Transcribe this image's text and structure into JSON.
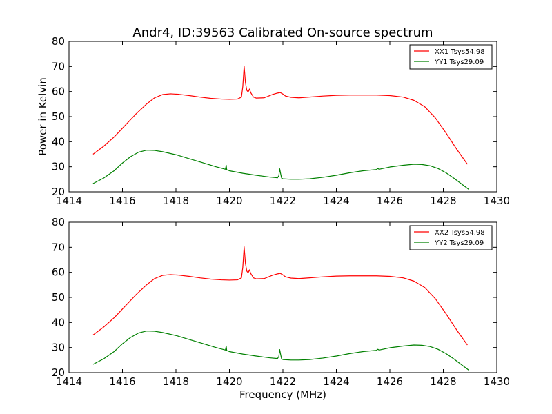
{
  "title": "Andr4, ID:39563 Calibrated On-source spectrum",
  "colors": {
    "xx": "#ff0000",
    "yy": "#008000"
  },
  "chart_data": [
    {
      "type": "line",
      "ylabel": "Power in Kelvin",
      "xlabel": "",
      "xlim": [
        1414,
        1430
      ],
      "ylim": [
        20,
        80
      ],
      "xticks": [
        1414,
        1416,
        1418,
        1420,
        1422,
        1424,
        1426,
        1428,
        1430
      ],
      "yticks": [
        20,
        30,
        40,
        50,
        60,
        70,
        80
      ],
      "legend": "top-right",
      "series": [
        {
          "name": "XX1 Tsys54.98",
          "color": "#ff0000",
          "points": [
            [
              1414.9,
              35.0
            ],
            [
              1415.3,
              38.2
            ],
            [
              1415.7,
              42.0
            ],
            [
              1416.1,
              46.5
            ],
            [
              1416.5,
              51.0
            ],
            [
              1416.9,
              55.0
            ],
            [
              1417.2,
              57.5
            ],
            [
              1417.5,
              58.8
            ],
            [
              1417.8,
              59.1
            ],
            [
              1418.1,
              58.9
            ],
            [
              1418.5,
              58.4
            ],
            [
              1418.9,
              57.8
            ],
            [
              1419.3,
              57.3
            ],
            [
              1419.7,
              57.0
            ],
            [
              1420.0,
              56.9
            ],
            [
              1420.3,
              57.0
            ],
            [
              1420.45,
              57.8
            ],
            [
              1420.5,
              62.0
            ],
            [
              1420.55,
              70.2
            ],
            [
              1420.6,
              63.5
            ],
            [
              1420.65,
              60.5
            ],
            [
              1420.7,
              59.8
            ],
            [
              1420.75,
              61.0
            ],
            [
              1420.8,
              59.5
            ],
            [
              1420.9,
              57.8
            ],
            [
              1421.0,
              57.4
            ],
            [
              1421.3,
              57.5
            ],
            [
              1421.6,
              58.8
            ],
            [
              1421.8,
              59.4
            ],
            [
              1421.9,
              59.6
            ],
            [
              1422.0,
              59.0
            ],
            [
              1422.1,
              58.2
            ],
            [
              1422.3,
              57.7
            ],
            [
              1422.6,
              57.5
            ],
            [
              1423.0,
              57.8
            ],
            [
              1423.5,
              58.2
            ],
            [
              1424.0,
              58.5
            ],
            [
              1424.5,
              58.6
            ],
            [
              1425.0,
              58.6
            ],
            [
              1425.5,
              58.6
            ],
            [
              1426.0,
              58.4
            ],
            [
              1426.5,
              57.8
            ],
            [
              1426.9,
              56.5
            ],
            [
              1427.3,
              54.0
            ],
            [
              1427.7,
              49.5
            ],
            [
              1428.1,
              43.5
            ],
            [
              1428.5,
              37.0
            ],
            [
              1428.9,
              31.0
            ]
          ]
        },
        {
          "name": "YY1 Tsys29.09",
          "color": "#008000",
          "points": [
            [
              1414.9,
              23.3
            ],
            [
              1415.3,
              25.5
            ],
            [
              1415.7,
              28.5
            ],
            [
              1416.0,
              31.5
            ],
            [
              1416.3,
              34.0
            ],
            [
              1416.6,
              35.8
            ],
            [
              1416.9,
              36.6
            ],
            [
              1417.2,
              36.5
            ],
            [
              1417.5,
              36.0
            ],
            [
              1418.0,
              34.8
            ],
            [
              1418.5,
              33.2
            ],
            [
              1419.0,
              31.6
            ],
            [
              1419.5,
              30.0
            ],
            [
              1419.85,
              29.0
            ],
            [
              1419.88,
              30.6
            ],
            [
              1419.9,
              28.8
            ],
            [
              1420.0,
              28.4
            ],
            [
              1420.5,
              27.4
            ],
            [
              1421.0,
              26.6
            ],
            [
              1421.5,
              25.9
            ],
            [
              1421.8,
              25.6
            ],
            [
              1421.85,
              26.5
            ],
            [
              1421.88,
              29.2
            ],
            [
              1421.92,
              27.0
            ],
            [
              1421.95,
              25.5
            ],
            [
              1422.0,
              25.2
            ],
            [
              1422.3,
              25.0
            ],
            [
              1422.6,
              25.0
            ],
            [
              1423.0,
              25.2
            ],
            [
              1423.5,
              25.8
            ],
            [
              1424.0,
              26.6
            ],
            [
              1424.5,
              27.6
            ],
            [
              1425.0,
              28.4
            ],
            [
              1425.5,
              28.9
            ],
            [
              1425.55,
              29.3
            ],
            [
              1425.6,
              29.0
            ],
            [
              1426.0,
              29.9
            ],
            [
              1426.5,
              30.6
            ],
            [
              1426.9,
              31.0
            ],
            [
              1427.2,
              30.9
            ],
            [
              1427.5,
              30.4
            ],
            [
              1427.8,
              29.3
            ],
            [
              1428.1,
              27.6
            ],
            [
              1428.4,
              25.4
            ],
            [
              1428.7,
              23.0
            ],
            [
              1428.95,
              21.0
            ]
          ]
        }
      ]
    },
    {
      "type": "line",
      "ylabel": "",
      "xlabel": "Frequency (MHz)",
      "xlim": [
        1414,
        1430
      ],
      "ylim": [
        20,
        80
      ],
      "xticks": [
        1414,
        1416,
        1418,
        1420,
        1422,
        1424,
        1426,
        1428,
        1430
      ],
      "yticks": [
        20,
        30,
        40,
        50,
        60,
        70,
        80
      ],
      "legend": "top-right",
      "series": [
        {
          "name": "XX2 Tsys54.98",
          "color": "#ff0000",
          "points": [
            [
              1414.9,
              35.0
            ],
            [
              1415.3,
              38.2
            ],
            [
              1415.7,
              42.0
            ],
            [
              1416.1,
              46.5
            ],
            [
              1416.5,
              51.0
            ],
            [
              1416.9,
              55.0
            ],
            [
              1417.2,
              57.5
            ],
            [
              1417.5,
              58.8
            ],
            [
              1417.8,
              59.1
            ],
            [
              1418.1,
              58.9
            ],
            [
              1418.5,
              58.4
            ],
            [
              1418.9,
              57.8
            ],
            [
              1419.3,
              57.3
            ],
            [
              1419.7,
              57.0
            ],
            [
              1420.0,
              56.9
            ],
            [
              1420.3,
              57.0
            ],
            [
              1420.45,
              57.8
            ],
            [
              1420.5,
              62.0
            ],
            [
              1420.55,
              70.2
            ],
            [
              1420.6,
              63.5
            ],
            [
              1420.65,
              60.5
            ],
            [
              1420.7,
              59.8
            ],
            [
              1420.75,
              61.0
            ],
            [
              1420.8,
              59.5
            ],
            [
              1420.9,
              57.8
            ],
            [
              1421.0,
              57.4
            ],
            [
              1421.3,
              57.5
            ],
            [
              1421.6,
              58.8
            ],
            [
              1421.8,
              59.4
            ],
            [
              1421.9,
              59.6
            ],
            [
              1422.0,
              59.0
            ],
            [
              1422.1,
              58.2
            ],
            [
              1422.3,
              57.7
            ],
            [
              1422.6,
              57.5
            ],
            [
              1423.0,
              57.8
            ],
            [
              1423.5,
              58.2
            ],
            [
              1424.0,
              58.5
            ],
            [
              1424.5,
              58.6
            ],
            [
              1425.0,
              58.6
            ],
            [
              1425.5,
              58.6
            ],
            [
              1426.0,
              58.4
            ],
            [
              1426.5,
              57.8
            ],
            [
              1426.9,
              56.5
            ],
            [
              1427.3,
              54.0
            ],
            [
              1427.7,
              49.5
            ],
            [
              1428.1,
              43.5
            ],
            [
              1428.5,
              37.0
            ],
            [
              1428.9,
              31.0
            ]
          ]
        },
        {
          "name": "YY2 Tsys29.09",
          "color": "#008000",
          "points": [
            [
              1414.9,
              23.3
            ],
            [
              1415.3,
              25.5
            ],
            [
              1415.7,
              28.5
            ],
            [
              1416.0,
              31.5
            ],
            [
              1416.3,
              34.0
            ],
            [
              1416.6,
              35.8
            ],
            [
              1416.9,
              36.6
            ],
            [
              1417.2,
              36.5
            ],
            [
              1417.5,
              36.0
            ],
            [
              1418.0,
              34.8
            ],
            [
              1418.5,
              33.2
            ],
            [
              1419.0,
              31.6
            ],
            [
              1419.5,
              30.0
            ],
            [
              1419.85,
              29.0
            ],
            [
              1419.88,
              30.6
            ],
            [
              1419.9,
              28.8
            ],
            [
              1420.0,
              28.4
            ],
            [
              1420.5,
              27.4
            ],
            [
              1421.0,
              26.6
            ],
            [
              1421.5,
              25.9
            ],
            [
              1421.8,
              25.6
            ],
            [
              1421.85,
              26.5
            ],
            [
              1421.88,
              29.2
            ],
            [
              1421.92,
              27.0
            ],
            [
              1421.95,
              25.5
            ],
            [
              1422.0,
              25.2
            ],
            [
              1422.3,
              25.0
            ],
            [
              1422.6,
              25.0
            ],
            [
              1423.0,
              25.2
            ],
            [
              1423.5,
              25.8
            ],
            [
              1424.0,
              26.6
            ],
            [
              1424.5,
              27.6
            ],
            [
              1425.0,
              28.4
            ],
            [
              1425.5,
              28.9
            ],
            [
              1425.55,
              29.3
            ],
            [
              1425.6,
              29.0
            ],
            [
              1426.0,
              29.9
            ],
            [
              1426.5,
              30.6
            ],
            [
              1426.9,
              31.0
            ],
            [
              1427.2,
              30.9
            ],
            [
              1427.5,
              30.4
            ],
            [
              1427.8,
              29.3
            ],
            [
              1428.1,
              27.6
            ],
            [
              1428.4,
              25.4
            ],
            [
              1428.7,
              23.0
            ],
            [
              1428.95,
              21.0
            ]
          ]
        }
      ]
    }
  ]
}
